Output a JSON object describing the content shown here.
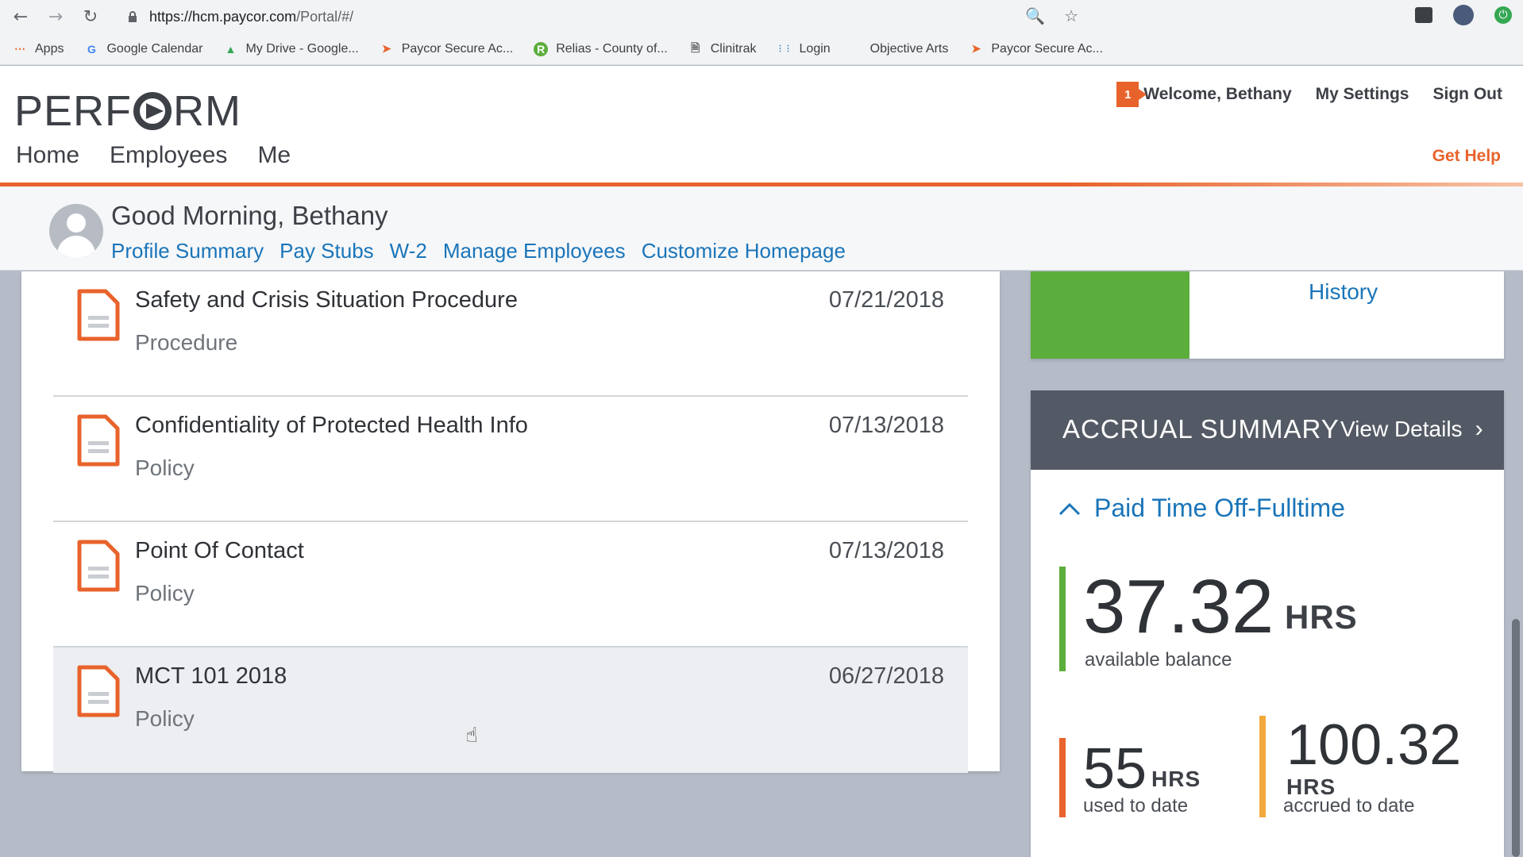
{
  "browser": {
    "url_host": "https://hcm.paycor.com",
    "url_path": "/Portal/#/",
    "bookmarks": [
      {
        "label": "Apps",
        "icon": "apps-grid-icon"
      },
      {
        "label": "Google Calendar",
        "icon": "google-icon"
      },
      {
        "label": "My Drive - Google...",
        "icon": "drive-icon"
      },
      {
        "label": "Paycor Secure Ac...",
        "icon": "paycor-icon"
      },
      {
        "label": "Relias - County of...",
        "icon": "relias-icon"
      },
      {
        "label": "Clinitrak",
        "icon": "page-icon"
      },
      {
        "label": "Login",
        "icon": "cisco-icon"
      },
      {
        "label": "Objective Arts",
        "icon": ""
      },
      {
        "label": "Paycor Secure Ac...",
        "icon": "paycor-icon"
      }
    ]
  },
  "header": {
    "logo_left": "PERF",
    "logo_right": "RM",
    "nav": [
      "Home",
      "Employees",
      "Me"
    ],
    "notification_count": "1",
    "welcome": "Welcome, Bethany",
    "my_settings": "My Settings",
    "sign_out": "Sign Out",
    "get_help": "Get Help",
    "accent_color": "#e8632b"
  },
  "greeting": {
    "text": "Good Morning, Bethany",
    "links": [
      "Profile Summary",
      "Pay Stubs",
      "W-2",
      "Manage Employees",
      "Customize Homepage"
    ]
  },
  "documents": [
    {
      "title": "Safety and Crisis Situation Procedure",
      "type": "Procedure",
      "date": "07/21/2018"
    },
    {
      "title": "Confidentiality of Protected Health Info",
      "type": "Policy",
      "date": "07/13/2018"
    },
    {
      "title": "Point Of Contact",
      "type": "Policy",
      "date": "07/13/2018"
    },
    {
      "title": "MCT 101 2018",
      "type": "Policy",
      "date": "06/27/2018"
    }
  ],
  "history": {
    "link": "History"
  },
  "accrual": {
    "title": "ACCRUAL SUMMARY",
    "view_details": "View Details",
    "plan": "Paid Time Off-Fulltime",
    "available": {
      "value": "37.32",
      "unit": "HRS",
      "label": "available balance",
      "color": "#5cae3c"
    },
    "used": {
      "value": "55",
      "unit": "HRS",
      "label": "used to date",
      "color": "#e8632b"
    },
    "accrued": {
      "value": "100.32",
      "unit": "HRS",
      "label": "accrued to date",
      "color": "#f2a93b"
    }
  }
}
